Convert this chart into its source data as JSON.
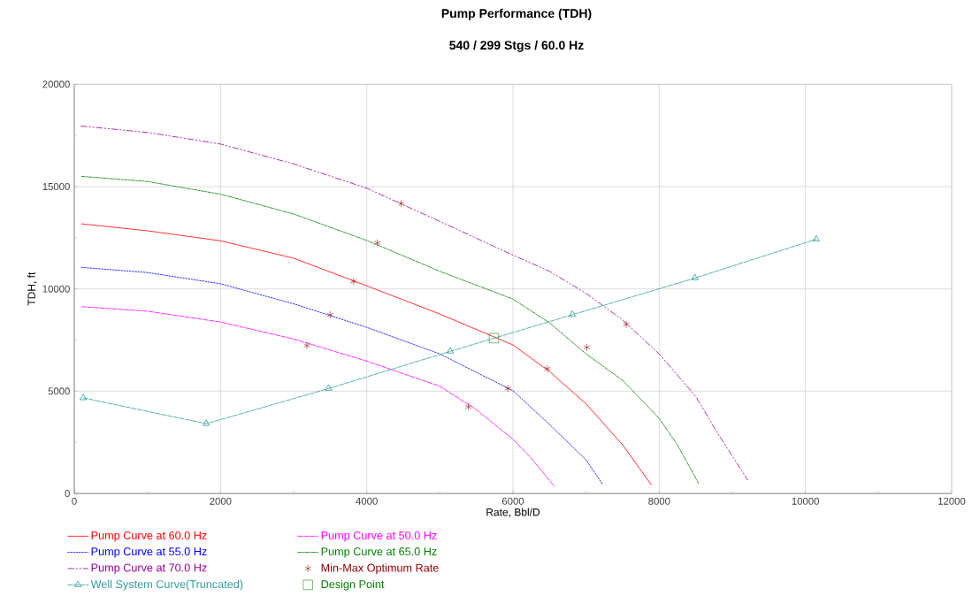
{
  "chart_data": {
    "type": "line",
    "title": "Pump Performance (TDH)",
    "subtitle": "540 / 299 Stgs / 60.0 Hz",
    "xlabel": "Rate, Bbl/D",
    "ylabel": "TDH, ft",
    "xlim": [
      0,
      12000
    ],
    "xticks": [
      0,
      2000,
      4000,
      6000,
      8000,
      10000,
      12000
    ],
    "ylim": [
      0,
      20000
    ],
    "yticks": [
      0,
      5000,
      10000,
      15000,
      20000
    ],
    "grid": true,
    "legend": "bottom",
    "series": [
      {
        "name": "Pump Curve at 60.0 Hz",
        "color": "#ff0000",
        "line_style": "solid",
        "marker": "none",
        "x": [
          100,
          1000,
          2000,
          3000,
          4000,
          5000,
          6000,
          6500,
          7000,
          7500,
          7890
        ],
        "values": [
          13180,
          12840,
          12350,
          11500,
          10150,
          8770,
          7260,
          5960,
          4380,
          2370,
          430
        ]
      },
      {
        "name": "Pump Curve at 50.0 Hz",
        "color": "#ff00ff",
        "line_style": "dashed",
        "marker": "none",
        "x": [
          100,
          1000,
          2000,
          3000,
          4000,
          5000,
          5500,
          6000,
          6250,
          6565
        ],
        "values": [
          9130,
          8910,
          8380,
          7550,
          6470,
          5240,
          4090,
          2650,
          1720,
          350
        ]
      },
      {
        "name": "Pump Curve at 55.0 Hz",
        "color": "#0000ff",
        "line_style": "dotted",
        "marker": "none",
        "x": [
          100,
          1000,
          2000,
          3000,
          4000,
          5000,
          6000,
          6500,
          7000,
          7230
        ],
        "values": [
          11050,
          10800,
          10250,
          9270,
          8120,
          6820,
          5020,
          3370,
          1640,
          420
        ]
      },
      {
        "name": "Pump Curve at 65.0 Hz",
        "color": "#008000",
        "line_style": "dashdot",
        "marker": "none",
        "x": [
          100,
          1000,
          2000,
          3000,
          4000,
          5000,
          6000,
          6500,
          7000,
          7500,
          8000,
          8250,
          8540
        ],
        "values": [
          15500,
          15250,
          14630,
          13660,
          12370,
          10860,
          9500,
          8340,
          6820,
          5530,
          3670,
          2370,
          490
        ]
      },
      {
        "name": "Pump Curve at 70.0 Hz",
        "color": "#990099",
        "line_style": "dashdotdot",
        "marker": "none",
        "x": [
          93,
          1000,
          2000,
          3000,
          4000,
          5000,
          6000,
          6500,
          7000,
          7500,
          8000,
          8500,
          8800,
          9210
        ],
        "values": [
          17960,
          17650,
          17080,
          16110,
          14920,
          13300,
          11650,
          10860,
          9780,
          8480,
          6820,
          4740,
          2940,
          660
        ]
      },
      {
        "name": "Min-Max Optimum Rate",
        "type": "scatter",
        "color": "#8b0000",
        "marker": "cross",
        "x": [
          3820,
          6470,
          3500,
          5930,
          3180,
          5390,
          4145,
          7010,
          4470,
          7550
        ],
        "values": [
          10370,
          6100,
          8730,
          5130,
          7230,
          4230,
          12250,
          7140,
          14170,
          8260
        ]
      },
      {
        "name": "Well System Curve(Truncated)",
        "color": "#2e9b9b",
        "line_style": "dashed",
        "marker": "triangle",
        "x": [
          125,
          1806,
          3480,
          5145,
          6815,
          8490,
          10150
        ],
        "values": [
          4670,
          3410,
          5130,
          6950,
          8740,
          10530,
          12430
        ]
      },
      {
        "name": "Design Point",
        "type": "scatter",
        "color": "#008000",
        "marker": "square",
        "x": [
          5740
        ],
        "values": [
          7590
        ]
      }
    ]
  }
}
